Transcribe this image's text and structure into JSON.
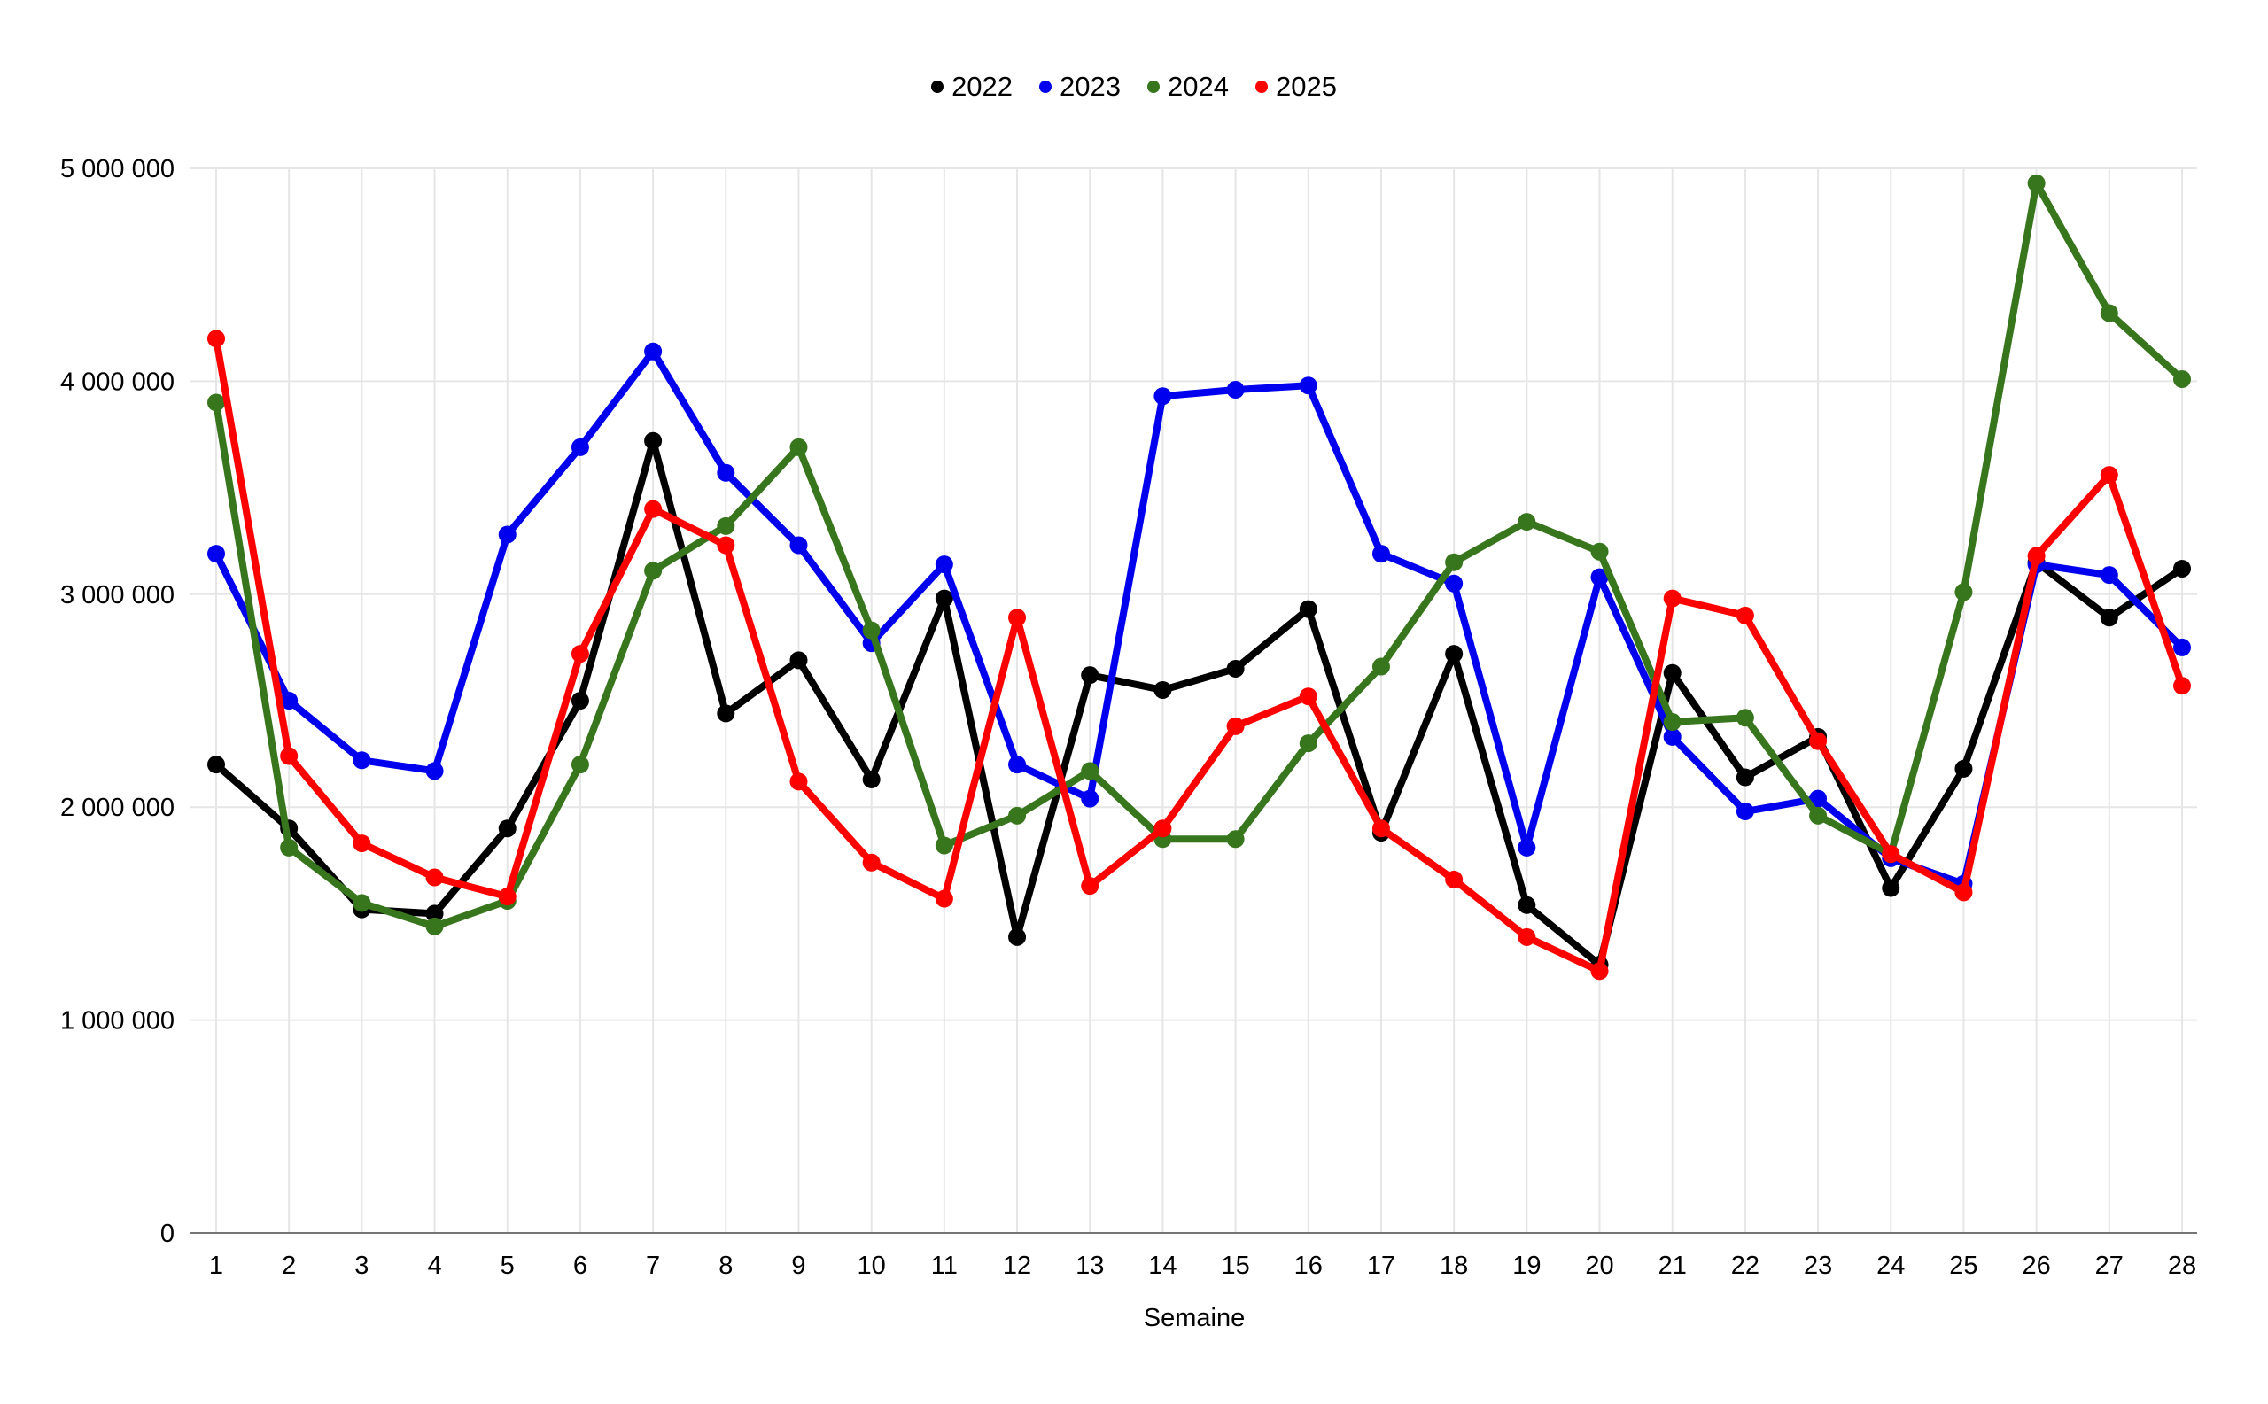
{
  "legend": {
    "items": [
      {
        "label": "2022",
        "color": "#000000"
      },
      {
        "label": "2023",
        "color": "#0000ee"
      },
      {
        "label": "2024",
        "color": "#38761d"
      },
      {
        "label": "2025",
        "color": "#ff0000"
      }
    ]
  },
  "chart_data": {
    "type": "line",
    "title": "",
    "xlabel": "Semaine",
    "ylabel": "",
    "x_categories": [
      "1",
      "2",
      "3",
      "4",
      "5",
      "6",
      "7",
      "8",
      "9",
      "10",
      "11",
      "12",
      "13",
      "14",
      "15",
      "16",
      "17",
      "18",
      "19",
      "20",
      "21",
      "22",
      "23",
      "24",
      "25",
      "26",
      "27",
      "28"
    ],
    "ylim": [
      0,
      5000000
    ],
    "ytick_interval": 1000000,
    "ytick_labels": [
      "0",
      "1 000 000",
      "2 000 000",
      "3 000 000",
      "4 000 000",
      "5 000 000"
    ],
    "grid": "both",
    "legend_position": "top-center",
    "marker": "circle",
    "series": [
      {
        "name": "2022",
        "color": "#000000",
        "values": [
          2200000,
          1900000,
          1520000,
          1500000,
          1900000,
          2500000,
          3720000,
          2440000,
          2690000,
          2130000,
          2980000,
          1390000,
          2620000,
          2550000,
          2650000,
          2930000,
          1880000,
          2720000,
          1540000,
          1260000,
          2630000,
          2140000,
          2330000,
          1620000,
          2180000,
          3150000,
          2890000,
          3120000
        ]
      },
      {
        "name": "2023",
        "color": "#0000ee",
        "values": [
          3190000,
          2500000,
          2220000,
          2170000,
          3280000,
          3690000,
          4140000,
          3570000,
          3230000,
          2770000,
          3140000,
          2200000,
          2040000,
          3930000,
          3960000,
          3980000,
          3190000,
          3050000,
          1810000,
          3080000,
          2330000,
          1980000,
          2040000,
          1760000,
          1640000,
          3140000,
          3090000,
          2750000
        ]
      },
      {
        "name": "2024",
        "color": "#38761d",
        "values": [
          3900000,
          1810000,
          1550000,
          1440000,
          1560000,
          2200000,
          3110000,
          3320000,
          3690000,
          2830000,
          1820000,
          1960000,
          2170000,
          1850000,
          1850000,
          2300000,
          2660000,
          3150000,
          3340000,
          3200000,
          2400000,
          2420000,
          1960000,
          1780000,
          3010000,
          4930000,
          4320000,
          4010000
        ]
      },
      {
        "name": "2025",
        "color": "#ff0000",
        "values": [
          4200000,
          2240000,
          1830000,
          1670000,
          1580000,
          2720000,
          3400000,
          3230000,
          2120000,
          1740000,
          1570000,
          2890000,
          1630000,
          1900000,
          2380000,
          2520000,
          1900000,
          1660000,
          1390000,
          1230000,
          2980000,
          2900000,
          2310000,
          1780000,
          1600000,
          3180000,
          3560000,
          2570000
        ]
      }
    ]
  }
}
